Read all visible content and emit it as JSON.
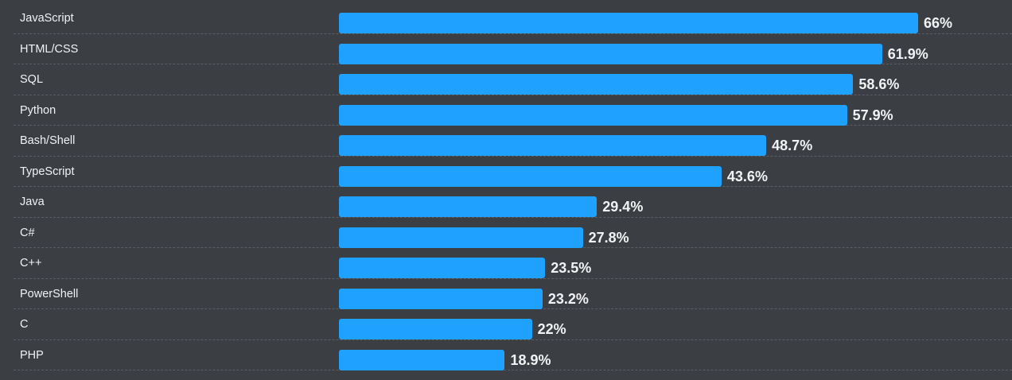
{
  "chart_data": {
    "type": "bar",
    "orientation": "horizontal",
    "categories": [
      "JavaScript",
      "HTML/CSS",
      "SQL",
      "Python",
      "Bash/Shell",
      "TypeScript",
      "Java",
      "C#",
      "C++",
      "PowerShell",
      "C",
      "PHP"
    ],
    "values": [
      66,
      61.9,
      58.6,
      57.9,
      48.7,
      43.6,
      29.4,
      27.8,
      23.5,
      23.2,
      22,
      18.9
    ],
    "value_labels": [
      "66%",
      "61.9%",
      "58.6%",
      "57.9%",
      "48.7%",
      "43.6%",
      "29.4%",
      "27.8%",
      "23.5%",
      "23.2%",
      "22%",
      "18.9%"
    ],
    "xlim": [
      0,
      100
    ],
    "title": "",
    "xlabel": "",
    "ylabel": "",
    "grid": false,
    "colors": {
      "background": "#3b3e43",
      "bar": "#1ea1ff",
      "text": "#f1f2f3",
      "divider": "#5a5e64"
    }
  }
}
